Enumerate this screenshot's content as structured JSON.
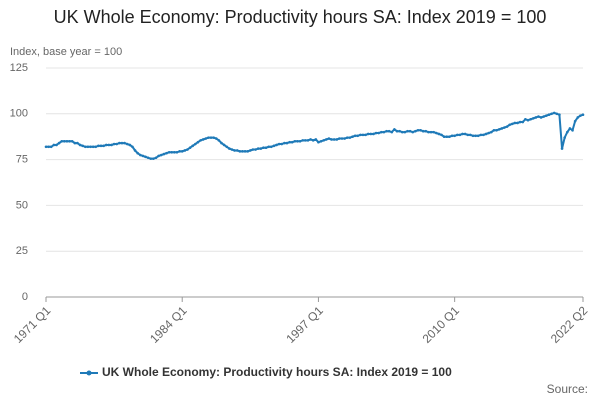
{
  "chart_data": {
    "type": "line",
    "title": "UK Whole Economy: Productivity hours SA: Index 2019 = 100",
    "y_label": "Index, base year = 100",
    "source": "Source:",
    "categories": [
      "1971 Q1",
      null,
      null,
      null,
      null,
      null,
      null,
      null,
      null,
      null,
      null,
      null,
      null,
      null,
      null,
      null,
      null,
      null,
      null,
      null,
      null,
      null,
      null,
      null,
      null,
      null,
      null,
      null,
      null,
      null,
      null,
      null,
      null,
      null,
      null,
      null,
      null,
      null,
      null,
      null,
      null,
      null,
      null,
      null,
      null,
      null,
      null,
      null,
      null,
      null,
      null,
      null,
      "1984 Q1",
      null,
      null,
      null,
      null,
      null,
      null,
      null,
      null,
      null,
      null,
      null,
      null,
      null,
      null,
      null,
      null,
      null,
      null,
      null,
      null,
      null,
      null,
      null,
      null,
      null,
      null,
      null,
      null,
      null,
      null,
      null,
      null,
      null,
      null,
      null,
      null,
      null,
      null,
      null,
      null,
      null,
      null,
      null,
      null,
      null,
      null,
      null,
      null,
      null,
      null,
      null,
      "1997 Q1",
      null,
      null,
      null,
      null,
      null,
      null,
      null,
      null,
      null,
      null,
      null,
      null,
      null,
      null,
      null,
      null,
      null,
      null,
      null,
      null,
      null,
      null,
      null,
      null,
      null,
      null,
      null,
      null,
      null,
      null,
      null,
      null,
      null,
      null,
      null,
      null,
      null,
      null,
      null,
      null,
      null,
      null,
      null,
      null,
      null,
      null,
      null,
      null,
      null,
      null,
      null,
      "2010 Q1",
      null,
      null,
      null,
      null,
      null,
      null,
      null,
      null,
      null,
      null,
      null,
      null,
      null,
      null,
      null,
      null,
      null,
      null,
      null,
      null,
      null,
      null,
      null,
      null,
      null,
      null,
      null,
      null,
      null,
      null,
      null,
      null,
      null,
      null,
      null,
      null,
      null,
      null,
      null,
      null,
      null,
      null,
      null,
      null,
      null,
      null,
      null,
      null,
      "2022 Q2"
    ],
    "series": [
      {
        "name": "UK Whole Economy: Productivity hours SA: Index 2019 = 100",
        "color": "#1f7ab8",
        "values": [
          82,
          82,
          82,
          83,
          83,
          84,
          85,
          85,
          85,
          85,
          85,
          84,
          84,
          83,
          82.5,
          82,
          82,
          82,
          82,
          82,
          82.5,
          82.5,
          82.5,
          83,
          83,
          83,
          83.5,
          83.5,
          84,
          84,
          84,
          83.5,
          83,
          82,
          80,
          78.5,
          77.5,
          77,
          76.5,
          76,
          75.5,
          75.5,
          76,
          77,
          77.5,
          78,
          78.5,
          79,
          79,
          79,
          79,
          79.5,
          79.5,
          80,
          80.5,
          81.5,
          82.5,
          83.5,
          84.5,
          85.5,
          86,
          86.5,
          87,
          87,
          87,
          86.5,
          85.5,
          84,
          83,
          82,
          81,
          80.5,
          80,
          80,
          79.5,
          79.5,
          79.5,
          79.5,
          80,
          80.5,
          80.5,
          81,
          81,
          81.5,
          81.5,
          82,
          82,
          82.5,
          83,
          83.5,
          83.5,
          84,
          84,
          84.5,
          84.5,
          85,
          85,
          85,
          85.5,
          85.5,
          85.5,
          86,
          85.5,
          86,
          84.5,
          85,
          85.5,
          86,
          86.5,
          86,
          86,
          86,
          86.5,
          86.5,
          86.5,
          87,
          87,
          87.5,
          88,
          88,
          88.5,
          88.5,
          88.5,
          89,
          89,
          89,
          89.5,
          89.5,
          90,
          90,
          90.5,
          90.5,
          90,
          91.5,
          90.5,
          90.5,
          90,
          90,
          90.5,
          90.5,
          90,
          90.5,
          91,
          91,
          90.5,
          90.5,
          90,
          90,
          90,
          89.5,
          89,
          88.5,
          87.5,
          87.5,
          87.5,
          88,
          88,
          88.5,
          88.5,
          89,
          89,
          88.5,
          88.5,
          88,
          88,
          88,
          88.5,
          88.5,
          89,
          89.5,
          90,
          91,
          91,
          91.5,
          92,
          92.5,
          93,
          94,
          94.5,
          95,
          95,
          95.5,
          95.5,
          97,
          96.5,
          97,
          97.5,
          98,
          98.5,
          98,
          98.5,
          99,
          99.5,
          100,
          100.5,
          100,
          99.5,
          81,
          87,
          90,
          92,
          91,
          96,
          98,
          99,
          99.5
        ]
      }
    ],
    "ylim": [
      0,
      125
    ],
    "yticks": [
      0,
      25,
      50,
      75,
      100,
      125
    ],
    "grid": true,
    "legend": "bottom"
  }
}
